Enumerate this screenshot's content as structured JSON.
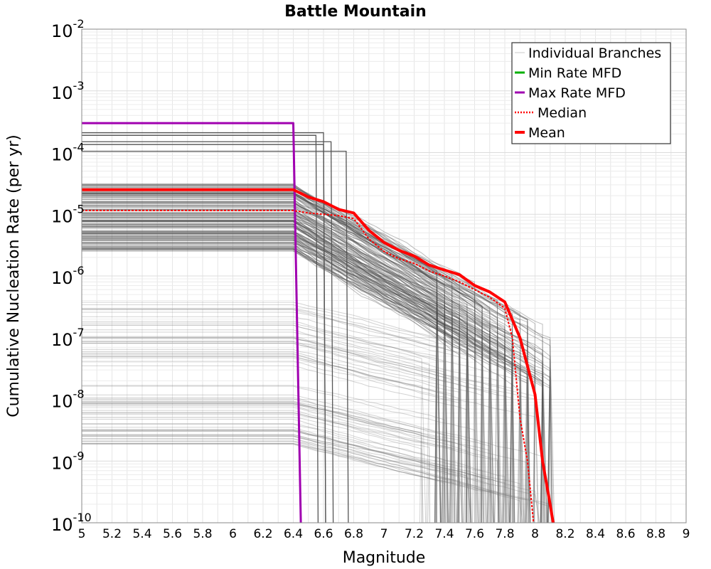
{
  "chart_data": {
    "type": "line",
    "title": "Battle Mountain",
    "xlabel": "Magnitude",
    "ylabel": "Cumulative Nucleation Rate (per yr)",
    "xlim": [
      5,
      9
    ],
    "ylim": [
      1e-10,
      0.01
    ],
    "yscale": "log",
    "grid": true,
    "legend_position": "top-right",
    "x_ticks": [
      "5",
      "5.2",
      "5.4",
      "5.6",
      "5.8",
      "6",
      "6.2",
      "6.4",
      "6.6",
      "6.8",
      "7",
      "7.2",
      "7.4",
      "7.6",
      "7.8",
      "8",
      "8.2",
      "8.4",
      "8.6",
      "8.8",
      "9"
    ],
    "y_ticks": [
      {
        "exp": -2,
        "base": "10",
        "sup": "-2"
      },
      {
        "exp": -3,
        "base": "10",
        "sup": "-3"
      },
      {
        "exp": -4,
        "base": "10",
        "sup": "-4"
      },
      {
        "exp": -5,
        "base": "10",
        "sup": "-5"
      },
      {
        "exp": -6,
        "base": "10",
        "sup": "-6"
      },
      {
        "exp": -7,
        "base": "10",
        "sup": "-7"
      },
      {
        "exp": -8,
        "base": "10",
        "sup": "-8"
      },
      {
        "exp": -9,
        "base": "10",
        "sup": "-9"
      },
      {
        "exp": -10,
        "base": "10",
        "sup": "-10"
      }
    ],
    "legend": [
      {
        "label": "Individual Branches",
        "color": "#c8c8c8",
        "style": "thin"
      },
      {
        "label": "Min Rate MFD",
        "color": "#00b000",
        "style": "solid"
      },
      {
        "label": "Max Rate MFD",
        "color": "#a000b0",
        "style": "solid"
      },
      {
        "label": "Median",
        "color": "#ff0000",
        "style": "dotted"
      },
      {
        "label": "Mean",
        "color": "#ff0000",
        "style": "thick"
      }
    ],
    "series": [
      {
        "name": "Max Rate MFD",
        "color": "#a000b0",
        "x": [
          5.0,
          6.4,
          6.45
        ],
        "y": [
          0.0003,
          0.0003,
          1e-10
        ]
      },
      {
        "name": "Min Rate MFD",
        "color": "#00b000",
        "x": [],
        "y": []
      },
      {
        "name": "Median",
        "color": "#ff0000",
        "x": [
          5.0,
          6.4,
          6.5,
          6.7,
          6.8,
          6.9,
          7.0,
          7.1,
          7.2,
          7.3,
          7.4,
          7.5,
          7.6,
          7.7,
          7.8,
          7.85,
          7.9,
          7.95,
          7.99
        ],
        "y": [
          1.15e-05,
          1.15e-05,
          1.05e-05,
          9.5e-06,
          8.5e-06,
          4e-06,
          2.5e-06,
          1.9e-06,
          1.6e-06,
          1.2e-06,
          1e-06,
          8e-07,
          6e-07,
          4.5e-07,
          3e-07,
          1e-07,
          5e-09,
          1e-09,
          1e-10
        ]
      },
      {
        "name": "Mean",
        "color": "#ff0000",
        "x": [
          5.0,
          6.4,
          6.5,
          6.6,
          6.7,
          6.8,
          6.9,
          7.0,
          7.1,
          7.2,
          7.3,
          7.4,
          7.5,
          7.6,
          7.7,
          7.8,
          7.9,
          8.0,
          8.05,
          8.1,
          8.12
        ],
        "y": [
          2.5e-05,
          2.5e-05,
          1.9e-05,
          1.6e-05,
          1.2e-05,
          1.05e-05,
          5.5e-06,
          3.5e-06,
          2.6e-06,
          2.1e-06,
          1.5e-06,
          1.25e-06,
          1.05e-06,
          7e-07,
          5.5e-07,
          3.8e-07,
          1e-07,
          1.2e-08,
          1e-09,
          2e-10,
          1e-10
        ]
      }
    ]
  }
}
